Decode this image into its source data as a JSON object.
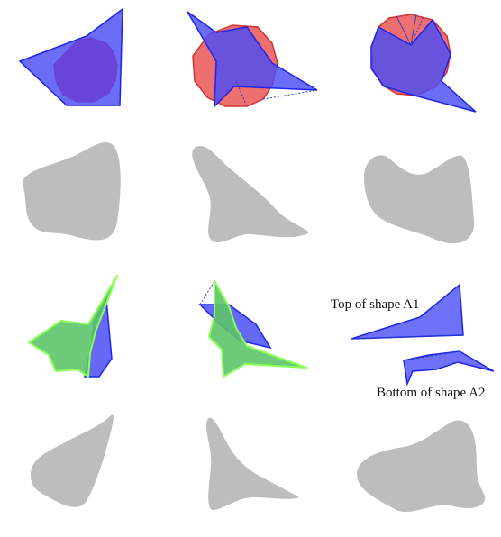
{
  "labels": {
    "top": "Top of shape A1",
    "bottom": "Bottom of shape A2"
  },
  "colors": {
    "blue_fill": "#4b4df5",
    "blue_stroke": "#1f25e8",
    "red_fill": "#ee6f6f",
    "red_stroke": "#d23232",
    "purple_overlap": "#6b3fd6",
    "green_fill": "#5dc46a",
    "green_stroke": "#8aff55",
    "gray_shape": "#bdbdbd",
    "background": "#ffffff"
  }
}
